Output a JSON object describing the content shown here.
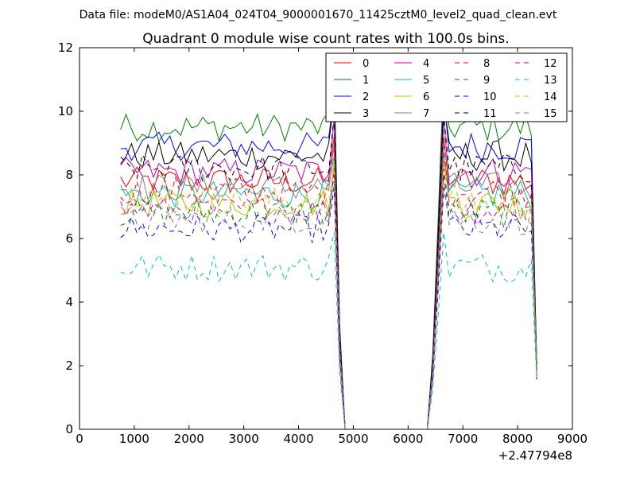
{
  "figure": {
    "suptitle": "Data file: modeM0/AS1A04_024T04_9000001670_11425cztM0_level2_quad_clean.evt"
  },
  "chart_data": {
    "type": "line",
    "title": "Quadrant 0 module wise count rates with 100.0s bins.",
    "xlabel": "",
    "ylabel": "",
    "x_offset_label": "+2.47794e8",
    "xlim": [
      0,
      9000
    ],
    "ylim": [
      0,
      12
    ],
    "xticks": [
      0,
      1000,
      2000,
      3000,
      4000,
      5000,
      6000,
      7000,
      8000,
      9000
    ],
    "yticks": [
      0,
      2,
      4,
      6,
      8,
      10,
      12
    ],
    "grid": false,
    "legend_position": "top-right",
    "x": [
      750,
      850,
      950,
      1050,
      1150,
      1250,
      1350,
      1450,
      1550,
      1650,
      1750,
      1850,
      1950,
      2050,
      2150,
      2250,
      2350,
      2450,
      2550,
      2650,
      2750,
      2850,
      2950,
      3050,
      3150,
      3250,
      3350,
      3450,
      3550,
      3650,
      3750,
      3850,
      3950,
      4050,
      4150,
      4250,
      4350,
      4450,
      4550,
      4650,
      4750,
      4850,
      4950,
      5050,
      5150,
      5250,
      5350,
      5450,
      5550,
      5650,
      5750,
      5850,
      5950,
      6050,
      6150,
      6250,
      6350,
      6450,
      6550,
      6650,
      6750,
      6850,
      6950,
      7050,
      7150,
      7250,
      7350,
      7450,
      7550,
      7650,
      7750,
      7850,
      7950,
      8050,
      8150,
      8250,
      8350
    ],
    "series": [
      {
        "name": "0",
        "color": "#ff0000",
        "dash": "solid",
        "base": 7.8,
        "peak": 9.2
      },
      {
        "name": "1",
        "color": "#007f00",
        "dash": "solid",
        "base": 9.5,
        "peak": 11.2
      },
      {
        "name": "2",
        "color": "#0000ff",
        "dash": "solid",
        "base": 8.9,
        "peak": 10.5
      },
      {
        "name": "3",
        "color": "#000000",
        "dash": "solid",
        "base": 8.6,
        "peak": 10.3
      },
      {
        "name": "4",
        "color": "#bf00bf",
        "dash": "solid",
        "base": 8.1,
        "peak": 9.8
      },
      {
        "name": "5",
        "color": "#00bfbf",
        "dash": "solid",
        "base": 7.4,
        "peak": 8.6
      },
      {
        "name": "6",
        "color": "#bfbf00",
        "dash": "solid",
        "base": 7.1,
        "peak": 8.4
      },
      {
        "name": "7",
        "color": "#7f7f7f",
        "dash": "solid",
        "base": 7.6,
        "peak": 9.0
      },
      {
        "name": "8",
        "color": "#ff0000",
        "dash": "dashed",
        "base": 7.5,
        "peak": 8.9
      },
      {
        "name": "9",
        "color": "#007f00",
        "dash": "dashed",
        "base": 6.8,
        "peak": 8.0
      },
      {
        "name": "10",
        "color": "#0000ff",
        "dash": "dashed",
        "base": 6.3,
        "peak": 7.6
      },
      {
        "name": "11",
        "color": "#000000",
        "dash": "dashed",
        "base": 8.2,
        "peak": 9.9
      },
      {
        "name": "12",
        "color": "#bf00bf",
        "dash": "dashed",
        "base": 6.9,
        "peak": 8.2
      },
      {
        "name": "13",
        "color": "#00bfbf",
        "dash": "dashed",
        "base": 5.1,
        "peak": 6.2
      },
      {
        "name": "14",
        "color": "#bfbf00",
        "dash": "dashed",
        "base": 7.2,
        "peak": 8.5
      },
      {
        "name": "15",
        "color": "#7f7f7f",
        "dash": "dashed",
        "base": 6.6,
        "peak": 7.8
      }
    ]
  }
}
